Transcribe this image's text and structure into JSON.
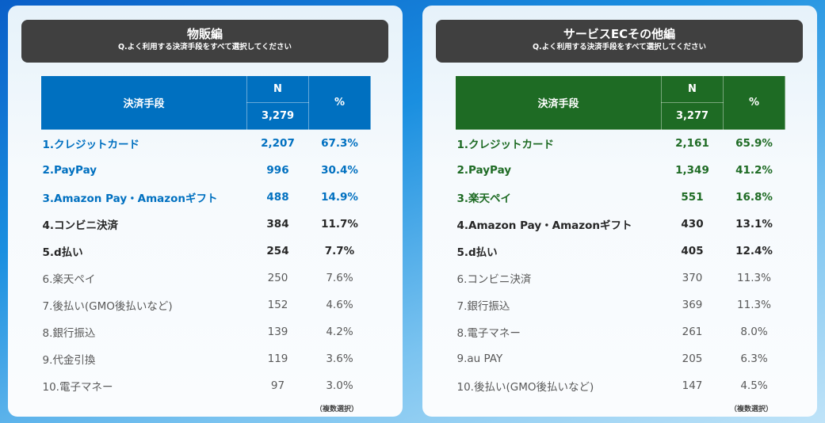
{
  "colors": {
    "left": "#0070c0",
    "right": "#1e6b24",
    "highlight_top": "3",
    "bold_top": "5",
    "text": "#595959"
  },
  "panels": [
    {
      "title": "物販編",
      "question": "Q.よく利用する決済手段をすべて選択してください",
      "col_method": "決済手段",
      "col_n": "N",
      "n_total": "3,279",
      "col_pct": "%",
      "rows": [
        {
          "label": "1.クレジットカード",
          "n": "2,207",
          "pct": "67.3%"
        },
        {
          "label": "2.PayPay",
          "n": "996",
          "pct": "30.4%"
        },
        {
          "label": "3.Amazon Pay・Amazonギフト",
          "n": "488",
          "pct": "14.9%"
        },
        {
          "label": "4.コンビニ決済",
          "n": "384",
          "pct": "11.7%"
        },
        {
          "label": "5.d払い",
          "n": "254",
          "pct": "7.7%"
        },
        {
          "label": "6.楽天ペイ",
          "n": "250",
          "pct": "7.6%"
        },
        {
          "label": "7.後払い(GMO後払いなど)",
          "n": "152",
          "pct": "4.6%"
        },
        {
          "label": "8.銀行振込",
          "n": "139",
          "pct": "4.2%"
        },
        {
          "label": "9.代金引換",
          "n": "119",
          "pct": "3.6%"
        },
        {
          "label": "10.電子マネー",
          "n": "97",
          "pct": "3.0%"
        }
      ],
      "note": "（複数選択）"
    },
    {
      "title": "サービスECその他編",
      "question": "Q.よく利用する決済手段をすべて選択してください",
      "col_method": "決済手段",
      "col_n": "N",
      "n_total": "3,277",
      "col_pct": "%",
      "rows": [
        {
          "label": "1.クレジットカード",
          "n": "2,161",
          "pct": "65.9%"
        },
        {
          "label": "2.PayPay",
          "n": "1,349",
          "pct": "41.2%"
        },
        {
          "label": "3.楽天ペイ",
          "n": "551",
          "pct": "16.8%"
        },
        {
          "label": "4.Amazon Pay・Amazonギフト",
          "n": "430",
          "pct": "13.1%"
        },
        {
          "label": "5.d払い",
          "n": "405",
          "pct": "12.4%"
        },
        {
          "label": "6.コンビニ決済",
          "n": "370",
          "pct": "11.3%"
        },
        {
          "label": "7.銀行振込",
          "n": "369",
          "pct": "11.3%"
        },
        {
          "label": "8.電子マネー",
          "n": "261",
          "pct": "8.0%"
        },
        {
          "label": "9.au PAY",
          "n": "205",
          "pct": "6.3%"
        },
        {
          "label": "10.後払い(GMO後払いなど)",
          "n": "147",
          "pct": "4.5%"
        }
      ],
      "note": "（複数選択）"
    }
  ]
}
